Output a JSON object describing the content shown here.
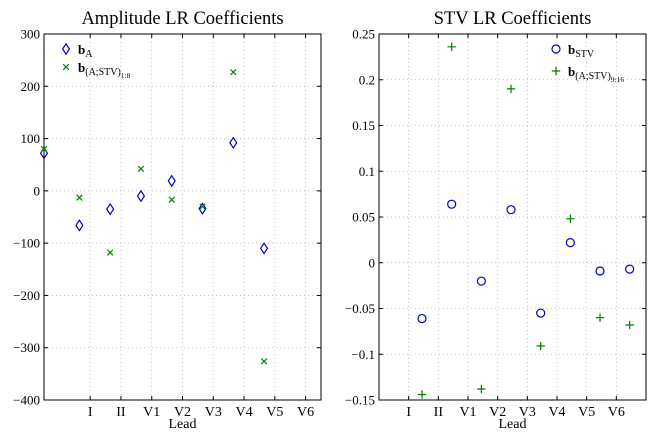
{
  "charts": [
    {
      "type": "scatter",
      "title": "Amplitude LR Coefficients",
      "xlabel": "Lead",
      "ylabel": "",
      "xlim": [
        -0.5,
        8.5
      ],
      "ylim": [
        -400,
        300
      ],
      "x_ticks": [
        {
          "value": 1,
          "label": "I"
        },
        {
          "value": 2,
          "label": "II"
        },
        {
          "value": 3,
          "label": "V1"
        },
        {
          "value": 4,
          "label": "V2"
        },
        {
          "value": 5,
          "label": "V3"
        },
        {
          "value": 6,
          "label": "V4"
        },
        {
          "value": 7,
          "label": "V5"
        },
        {
          "value": 8,
          "label": "V6"
        }
      ],
      "y_ticks": [
        {
          "value": 300,
          "label": "300"
        },
        {
          "value": 200,
          "label": "200"
        },
        {
          "value": 100,
          "label": "100"
        },
        {
          "value": 0,
          "label": "0"
        },
        {
          "value": -100,
          "label": "−100"
        },
        {
          "value": -200,
          "label": "−200"
        },
        {
          "value": -300,
          "label": "−300"
        },
        {
          "value": -400,
          "label": "−400"
        }
      ],
      "grid": true,
      "legend_position": "top-right",
      "series": [
        {
          "name": "b",
          "name_sub": "A",
          "marker": "diamond",
          "color": "#0000cc",
          "points": [
            [
              -0.5,
              72
            ],
            [
              0.65,
              -66
            ],
            [
              1.65,
              -35
            ],
            [
              2.65,
              -10
            ],
            [
              3.65,
              19
            ],
            [
              4.65,
              -34
            ],
            [
              5.65,
              92
            ],
            [
              6.65,
              -110
            ]
          ]
        },
        {
          "name": "b",
          "name_sub": "(A;STV)",
          "name_sub2": "1:8",
          "marker": "x",
          "color": "#007f00",
          "points": [
            [
              -0.5,
              80
            ],
            [
              0.65,
              -13
            ],
            [
              1.65,
              -118
            ],
            [
              2.65,
              42
            ],
            [
              3.65,
              -17
            ],
            [
              4.65,
              -30
            ],
            [
              5.65,
              227
            ],
            [
              6.65,
              -326
            ]
          ]
        }
      ]
    },
    {
      "type": "scatter",
      "title": "STV LR Coefficients",
      "xlabel": "Lead",
      "ylabel": "",
      "xlim": [
        0,
        9
      ],
      "ylim": [
        -0.15,
        0.25
      ],
      "x_ticks": [
        {
          "value": 1,
          "label": "I"
        },
        {
          "value": 2,
          "label": "II"
        },
        {
          "value": 3,
          "label": "V1"
        },
        {
          "value": 4,
          "label": "V2"
        },
        {
          "value": 5,
          "label": "V3"
        },
        {
          "value": 6,
          "label": "V4"
        },
        {
          "value": 7,
          "label": "V5"
        },
        {
          "value": 8,
          "label": "V6"
        }
      ],
      "y_ticks": [
        {
          "value": 0.25,
          "label": "0.25"
        },
        {
          "value": 0.2,
          "label": "0.2"
        },
        {
          "value": 0.15,
          "label": "0.15"
        },
        {
          "value": 0.1,
          "label": "0.1"
        },
        {
          "value": 0.05,
          "label": "0.05"
        },
        {
          "value": 0,
          "label": "0"
        },
        {
          "value": -0.05,
          "label": "−0.05"
        },
        {
          "value": -0.1,
          "label": "−0.1"
        },
        {
          "value": -0.15,
          "label": "−0.15"
        }
      ],
      "grid": true,
      "legend_position": "top-right",
      "series": [
        {
          "name": "b",
          "name_sub": "STV",
          "marker": "circle",
          "color": "#0000cc",
          "points": [
            [
              1.45,
              -0.061
            ],
            [
              2.45,
              0.064
            ],
            [
              3.45,
              -0.02
            ],
            [
              4.45,
              0.058
            ],
            [
              5.45,
              -0.055
            ],
            [
              6.45,
              0.022
            ],
            [
              7.45,
              -0.009
            ],
            [
              8.45,
              -0.007
            ]
          ]
        },
        {
          "name": "b",
          "name_sub": "(A;STV)",
          "name_sub2": "9:16",
          "marker": "plus",
          "color": "#007f00",
          "points": [
            [
              1.45,
              -0.144
            ],
            [
              2.45,
              0.236
            ],
            [
              3.45,
              -0.138
            ],
            [
              4.45,
              0.19
            ],
            [
              5.45,
              -0.091
            ],
            [
              6.45,
              0.048
            ],
            [
              7.45,
              -0.06
            ],
            [
              8.45,
              -0.068
            ]
          ]
        }
      ]
    }
  ]
}
